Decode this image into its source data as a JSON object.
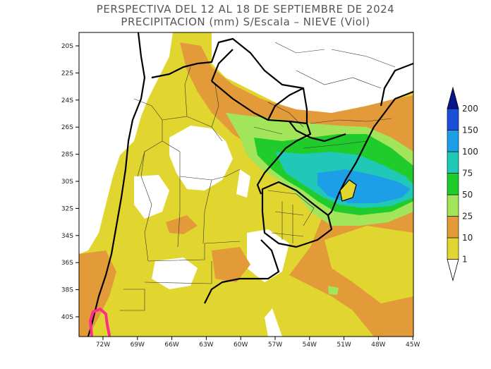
{
  "title": {
    "line1": "PERSPECTIVA DEL 12 AL 18 DE SEPTIEMBRE DE 2024",
    "line2": "PRECIPITACION (mm) S/Escala – NIEVE (Viol)"
  },
  "axes": {
    "lat_labels": [
      "20S",
      "22S",
      "24S",
      "26S",
      "28S",
      "30S",
      "32S",
      "34S",
      "36S",
      "38S",
      "40S"
    ],
    "lon_labels": [
      "72W",
      "69W",
      "66W",
      "63W",
      "60W",
      "57W",
      "54W",
      "51W",
      "48W",
      "45W"
    ]
  },
  "colorbar": {
    "labels": [
      "1",
      "10",
      "25",
      "50",
      "75",
      "100",
      "150",
      "200"
    ],
    "colors": [
      "#ffffff",
      "#e1d630",
      "#e39b3a",
      "#a3e55a",
      "#1fcc2b",
      "#20c8b8",
      "#1d9fe8",
      "#1b4fd8",
      "#0a148c"
    ]
  },
  "snow_color": "#ff2d8a"
}
